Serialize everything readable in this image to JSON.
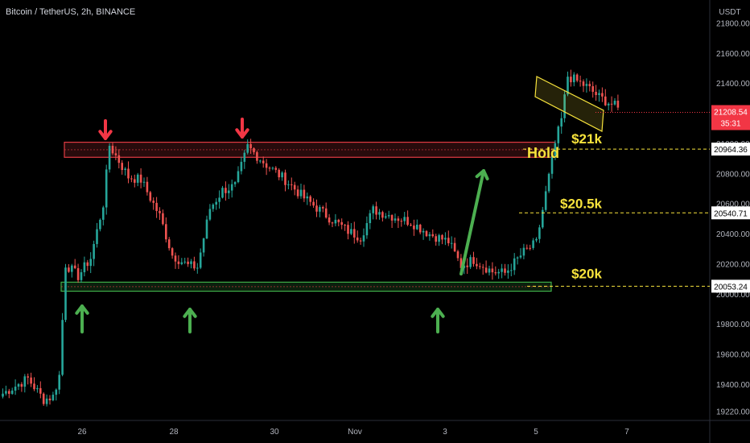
{
  "header": {
    "symbol_line": "Bitcoin / TetherUS, 2h, BINANCE"
  },
  "chart_data": {
    "type": "candlestick",
    "y_axis": {
      "unit_label": "USDT",
      "ticks": [
        19220,
        19400,
        19600,
        19800,
        20000,
        20200,
        20400,
        20600,
        20800,
        21000,
        21200,
        21400,
        21600,
        21800
      ],
      "tick_labels": [
        "19220.00",
        "19400.00",
        "19600.00",
        "19800.00",
        "20000.00",
        "20200.00",
        "20400.00",
        "20600.00",
        "20800.00",
        "21000.00",
        "21200.00",
        "21400.00",
        "21600.00",
        "21800.00"
      ]
    },
    "x_axis": {
      "tick_labels": [
        "26",
        "28",
        "30",
        "Nov",
        "3",
        "5",
        "7"
      ]
    },
    "last_price": {
      "value": "21208.54",
      "countdown": "35:31",
      "color": "#f23645"
    },
    "price_tags": [
      {
        "value": "20964.36",
        "label": "$21k",
        "color": "#f7e33c"
      },
      {
        "value": "20540.71",
        "label": "$20.5k",
        "color": "#f7e33c"
      },
      {
        "value": "20053.24",
        "label": "$20k",
        "color": "#f7e33c"
      }
    ],
    "annotations": {
      "hold_text": "Hold",
      "resistance_zone": [
        20910,
        21010
      ],
      "support_zone": [
        20020,
        20080
      ],
      "channel_color": "#f7e33c"
    },
    "colors": {
      "up": "#26a69a",
      "down": "#ef5350",
      "resistance": "#e03b43",
      "support": "#3fae49",
      "arrow_down": "#f23645",
      "arrow_up": "#4caf50",
      "background": "#000000"
    },
    "anchors": [
      [
        0,
        19340
      ],
      [
        8,
        19440
      ],
      [
        13,
        19300
      ],
      [
        16,
        19320
      ],
      [
        18,
        19460
      ],
      [
        20,
        20200
      ],
      [
        24,
        20120
      ],
      [
        28,
        20240
      ],
      [
        32,
        20600
      ],
      [
        34,
        20990
      ],
      [
        40,
        20780
      ],
      [
        44,
        20760
      ],
      [
        50,
        20520
      ],
      [
        54,
        20260
      ],
      [
        59,
        20190
      ],
      [
        62,
        20180
      ],
      [
        66,
        20570
      ],
      [
        70,
        20690
      ],
      [
        74,
        20720
      ],
      [
        78,
        20980
      ],
      [
        84,
        20860
      ],
      [
        90,
        20760
      ],
      [
        96,
        20640
      ],
      [
        104,
        20510
      ],
      [
        110,
        20420
      ],
      [
        114,
        20380
      ],
      [
        118,
        20560
      ],
      [
        124,
        20520
      ],
      [
        130,
        20480
      ],
      [
        136,
        20400
      ],
      [
        142,
        20350
      ],
      [
        146,
        20190
      ],
      [
        150,
        20230
      ],
      [
        156,
        20150
      ],
      [
        160,
        20140
      ],
      [
        166,
        20280
      ],
      [
        170,
        20340
      ],
      [
        176,
        21000
      ],
      [
        178,
        21160
      ],
      [
        180,
        21450
      ],
      [
        186,
        21380
      ],
      [
        190,
        21310
      ],
      [
        196,
        21240
      ]
    ]
  }
}
